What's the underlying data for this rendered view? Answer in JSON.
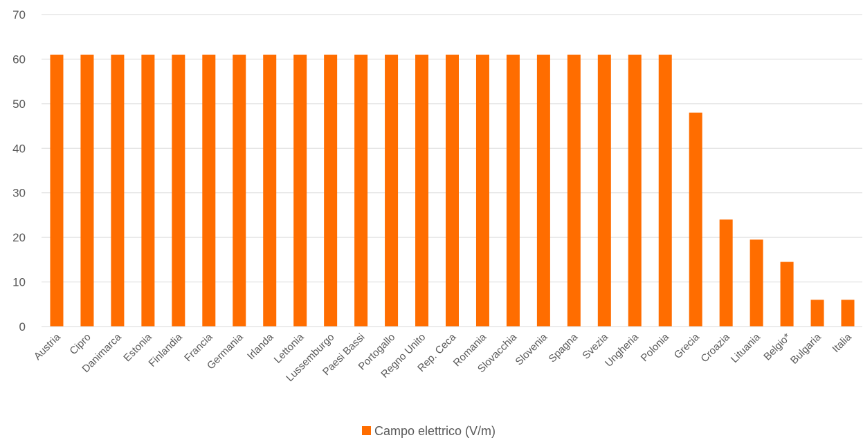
{
  "chart_data": {
    "type": "bar",
    "categories": [
      "Austria",
      "Cipro",
      "Danimarca",
      "Estonia",
      "Finlandia",
      "Francia",
      "Germania",
      "Irlanda",
      "Lettonia",
      "Lussemburgo",
      "Paesi Bassi",
      "Portogallo",
      "Regno Unito",
      "Rep. Ceca",
      "Romania",
      "Slovacchia",
      "Slovenia",
      "Spagna",
      "Svezia",
      "Ungheria",
      "Polonia",
      "Grecia",
      "Croazia",
      "Lituania",
      "Belgio*",
      "Bulgaria",
      "Italia"
    ],
    "series": [
      {
        "name": "Campo elettrico (V/m)",
        "color": "#ff6d00",
        "values": [
          61,
          61,
          61,
          61,
          61,
          61,
          61,
          61,
          61,
          61,
          61,
          61,
          61,
          61,
          61,
          61,
          61,
          61,
          61,
          61,
          61,
          48,
          24,
          19.5,
          14.5,
          6,
          6
        ]
      }
    ],
    "ylim": [
      0,
      70
    ],
    "yticks": [
      0,
      10,
      20,
      30,
      40,
      50,
      60,
      70
    ],
    "grid": true,
    "legend": "bottom-center"
  }
}
